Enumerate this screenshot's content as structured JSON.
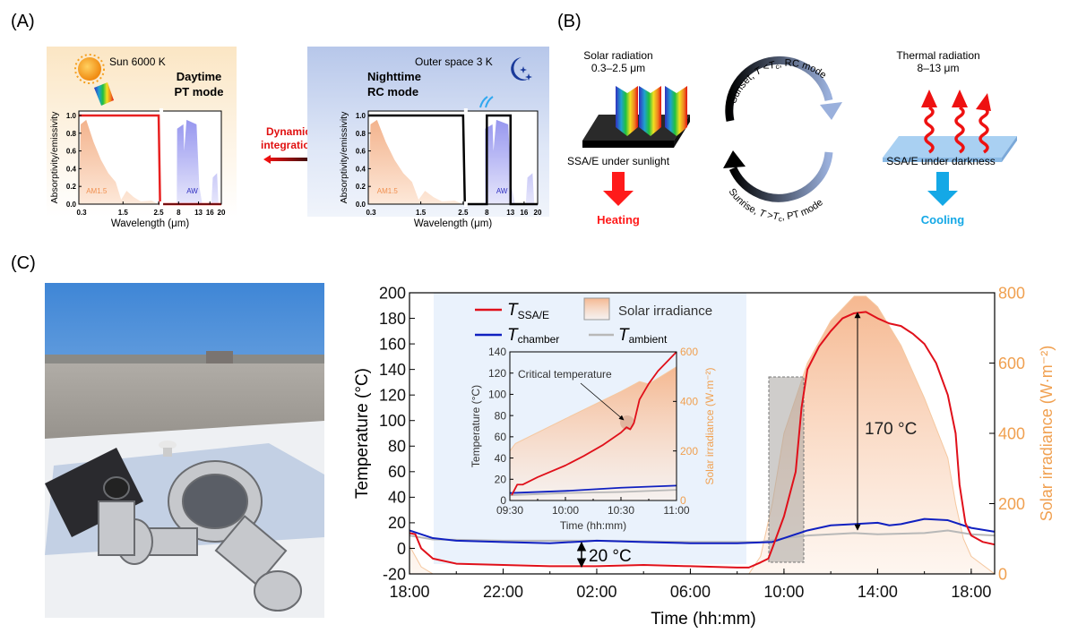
{
  "colors": {
    "t_ssa_e": "#e0101a",
    "t_chamber": "#1020c0",
    "t_ambient": "#b8b8b8",
    "irradiance_fill": "#f5b48a",
    "irradiance_axis": "#f0a050",
    "night_band": "#eaf2fc",
    "heating": "#ff1a1a",
    "cooling": "#14a8e6"
  },
  "panel_a": {
    "label": "(A)",
    "day": {
      "source": "Sun 6000 K",
      "title_line1": "Daytime",
      "title_line2": "PT mode",
      "band1": "AM1.5",
      "band2": "AW"
    },
    "night": {
      "source": "Outer space 3 K",
      "title_line1": "Nighttime",
      "title_line2": "RC mode",
      "band1": "AM1.5",
      "band2": "AW"
    },
    "ylabel": "Absorptivity/emissivity",
    "xlabel": "Wavelength (μm)",
    "yticks": [
      "0.0",
      "0.2",
      "0.4",
      "0.6",
      "0.8",
      "1.0"
    ],
    "xticks": [
      "0.3",
      "1.5",
      "2.5",
      "8",
      "13",
      "16",
      "20"
    ],
    "middle": {
      "line1": "Dynamic",
      "line2": "integration"
    }
  },
  "panel_b": {
    "label": "(B)",
    "left": {
      "title_line1": "Solar radiation",
      "title_line2": "0.3–2.5 μm",
      "caption": "SSA/E under sunlight",
      "result": "Heating"
    },
    "right": {
      "title_line1": "Thermal radiation",
      "title_line2": "8–13 μm",
      "caption": "SSA/E under darkness",
      "result": "Cooling"
    },
    "top_arc": {
      "pre": "Sunset, ",
      "t": "T",
      "op": " <",
      "tc": "T",
      "tc_sub": "c",
      "post": ", RC mode"
    },
    "bottom_arc": {
      "pre": "Sunrise, ",
      "t": "T",
      "op": " >",
      "tc": "T",
      "tc_sub": "c",
      "post": ", PT mode"
    }
  },
  "panel_c": {
    "label": "(C)",
    "legend": {
      "ssa_t": "T",
      "ssa_sub": "SSA/E",
      "chamber_t": "T",
      "chamber_sub": "chamber",
      "ambient_t": "T",
      "ambient_sub": "ambient",
      "irradiance": "Solar irradiance"
    },
    "annotations": {
      "peak_diff": "170 °C",
      "night_diff": "20 °C",
      "critical": "Critical temperature"
    }
  },
  "chart_data": [
    {
      "id": "a-day",
      "type": "line",
      "ylabel": "Absorptivity/emissivity",
      "xlabel": "Wavelength (μm)",
      "ylim": [
        0,
        1.0
      ],
      "x_ticks": [
        0.3,
        1.5,
        2.5,
        8,
        13,
        16,
        20
      ],
      "x_axis_break": "between 2.5 and 8",
      "series": [
        {
          "color": "#e82020",
          "points": [
            [
              0.3,
              1.0
            ],
            [
              2.5,
              1.0
            ],
            [
              2.9,
              0.0
            ],
            [
              20,
              0.0
            ]
          ]
        }
      ],
      "shaded_bands": [
        "AM1.5",
        "AW"
      ]
    },
    {
      "id": "a-night",
      "type": "line",
      "ylabel": "Absorptivity/emissivity",
      "xlabel": "Wavelength (μm)",
      "ylim": [
        0,
        1.0
      ],
      "x_ticks": [
        0.3,
        1.5,
        2.5,
        8,
        13,
        16,
        20
      ],
      "x_axis_break": "between 2.5 and 8",
      "series": [
        {
          "color": "#000000",
          "points": [
            [
              0.3,
              1.0
            ],
            [
              2.5,
              1.0
            ],
            [
              2.9,
              0.0
            ],
            [
              8,
              0.0
            ],
            [
              8,
              1.0
            ],
            [
              13,
              1.0
            ],
            [
              13,
              0.0
            ],
            [
              20,
              0.0
            ]
          ]
        }
      ],
      "shaded_bands": [
        "AM1.5",
        "AW"
      ]
    },
    {
      "id": "c-main",
      "type": "line",
      "xlabel": "Time (hh:mm)",
      "ylabel": "Temperature (°C)",
      "y2label": "Solar irradiance (W·m⁻²)",
      "ylim": [
        -20,
        200
      ],
      "y2lim": [
        0,
        800
      ],
      "yticks": [
        "-20",
        "0",
        "20",
        "40",
        "60",
        "80",
        "100",
        "120",
        "140",
        "160",
        "180",
        "200"
      ],
      "y2ticks": [
        "0",
        "200",
        "400",
        "600",
        "800"
      ],
      "xticks": [
        "18:00",
        "22:00",
        "02:00",
        "06:00",
        "10:00",
        "14:00",
        "18:00"
      ],
      "legend": "top-left",
      "series": [
        {
          "name": "T_SSA/E",
          "color": "#e0101a",
          "points": [
            [
              "18:00",
              12
            ],
            [
              "18:15",
              11
            ],
            [
              "18:30",
              0
            ],
            [
              "19:00",
              -8
            ],
            [
              "20:00",
              -12
            ],
            [
              "22:00",
              -13
            ],
            [
              "00:00",
              -14
            ],
            [
              "02:00",
              -14
            ],
            [
              "04:00",
              -13
            ],
            [
              "06:00",
              -14
            ],
            [
              "08:00",
              -15
            ],
            [
              "08:30",
              -15
            ],
            [
              "09:00",
              -11
            ],
            [
              "09:20",
              -8
            ],
            [
              "09:30",
              0
            ],
            [
              "10:00",
              25
            ],
            [
              "10:30",
              60
            ],
            [
              "10:45",
              110
            ],
            [
              "11:00",
              140
            ],
            [
              "11:30",
              158
            ],
            [
              "12:00",
              170
            ],
            [
              "12:30",
              180
            ],
            [
              "13:00",
              184
            ],
            [
              "13:30",
              185
            ],
            [
              "14:00",
              180
            ],
            [
              "14:30",
              176
            ],
            [
              "15:00",
              174
            ],
            [
              "15:30",
              168
            ],
            [
              "16:00",
              160
            ],
            [
              "16:30",
              145
            ],
            [
              "17:00",
              120
            ],
            [
              "17:20",
              90
            ],
            [
              "17:30",
              50
            ],
            [
              "17:45",
              20
            ],
            [
              "18:00",
              10
            ],
            [
              "18:30",
              5
            ],
            [
              "19:00",
              3
            ]
          ]
        },
        {
          "name": "T_chamber",
          "color": "#1020c0",
          "points": [
            [
              "18:00",
              14
            ],
            [
              "19:00",
              8
            ],
            [
              "20:00",
              6
            ],
            [
              "22:00",
              5
            ],
            [
              "00:00",
              4
            ],
            [
              "01:00",
              5
            ],
            [
              "02:00",
              6
            ],
            [
              "04:00",
              5
            ],
            [
              "06:00",
              4
            ],
            [
              "08:00",
              4
            ],
            [
              "09:30",
              5
            ],
            [
              "10:00",
              8
            ],
            [
              "11:00",
              14
            ],
            [
              "12:00",
              18
            ],
            [
              "13:00",
              19
            ],
            [
              "14:00",
              20
            ],
            [
              "14:30",
              18
            ],
            [
              "15:00",
              19
            ],
            [
              "16:00",
              23
            ],
            [
              "17:00",
              22
            ],
            [
              "18:00",
              16
            ],
            [
              "19:00",
              13
            ]
          ]
        },
        {
          "name": "T_ambient",
          "color": "#b8b8b8",
          "points": [
            [
              "18:00",
              10
            ],
            [
              "19:00",
              7
            ],
            [
              "22:00",
              6
            ],
            [
              "02:00",
              6
            ],
            [
              "06:00",
              5
            ],
            [
              "09:00",
              5
            ],
            [
              "10:00",
              8
            ],
            [
              "11:00",
              10
            ],
            [
              "13:00",
              12
            ],
            [
              "14:00",
              11
            ],
            [
              "16:00",
              12
            ],
            [
              "17:00",
              14
            ],
            [
              "18:00",
              11
            ],
            [
              "19:00",
              10
            ]
          ]
        },
        {
          "name": "Solar irradiance",
          "axis": "right",
          "type": "area",
          "color": "#f5b48a",
          "points": [
            [
              "18:00",
              80
            ],
            [
              "18:30",
              20
            ],
            [
              "19:00",
              0
            ],
            [
              "08:30",
              0
            ],
            [
              "09:00",
              50
            ],
            [
              "09:30",
              200
            ],
            [
              "10:00",
              400
            ],
            [
              "10:30",
              500
            ],
            [
              "11:00",
              600
            ],
            [
              "12:00",
              720
            ],
            [
              "13:00",
              790
            ],
            [
              "13:30",
              790
            ],
            [
              "14:00",
              760
            ],
            [
              "15:00",
              650
            ],
            [
              "16:00",
              500
            ],
            [
              "17:00",
              330
            ],
            [
              "17:20",
              200
            ],
            [
              "17:40",
              100
            ],
            [
              "18:00",
              50
            ],
            [
              "19:00",
              0
            ]
          ]
        }
      ]
    },
    {
      "id": "c-inset",
      "type": "line",
      "xlabel": "Time (hh:mm)",
      "ylabel": "Temperature (°C)",
      "y2label": "Solar irradiance (W·m⁻²)",
      "ylim": [
        0,
        140
      ],
      "y2lim": [
        0,
        600
      ],
      "yticks": [
        "0",
        "20",
        "40",
        "60",
        "80",
        "100",
        "120",
        "140"
      ],
      "y2ticks": [
        "0",
        "200",
        "400",
        "600"
      ],
      "xticks": [
        "09:30",
        "10:00",
        "10:30",
        "11:00"
      ],
      "series": [
        {
          "name": "T_SSA/E",
          "color": "#e0101a",
          "points": [
            [
              "09:31",
              5
            ],
            [
              "09:34",
              15
            ],
            [
              "09:37",
              15
            ],
            [
              "09:45",
              22
            ],
            [
              "10:00",
              33
            ],
            [
              "10:10",
              42
            ],
            [
              "10:20",
              52
            ],
            [
              "10:30",
              64
            ],
            [
              "10:33",
              69
            ],
            [
              "10:35",
              67
            ],
            [
              "10:37",
              73
            ],
            [
              "10:40",
              95
            ],
            [
              "10:45",
              110
            ],
            [
              "10:50",
              122
            ],
            [
              "11:00",
              140
            ]
          ]
        },
        {
          "name": "T_chamber",
          "color": "#1020c0",
          "points": [
            [
              "09:30",
              7
            ],
            [
              "10:00",
              9
            ],
            [
              "10:30",
              12
            ],
            [
              "11:00",
              14
            ]
          ]
        },
        {
          "name": "T_ambient",
          "color": "#b8b8b8",
          "points": [
            [
              "09:30",
              5
            ],
            [
              "10:00",
              7
            ],
            [
              "10:30",
              8
            ],
            [
              "11:00",
              10
            ]
          ]
        },
        {
          "name": "Solar irradiance",
          "axis": "right",
          "type": "area",
          "color": "#f5b48a",
          "points": [
            [
              "09:30",
              200
            ],
            [
              "09:33",
              230
            ],
            [
              "10:00",
              330
            ],
            [
              "10:30",
              440
            ],
            [
              "10:40",
              480
            ],
            [
              "10:45",
              470
            ],
            [
              "11:00",
              540
            ]
          ]
        }
      ]
    }
  ]
}
